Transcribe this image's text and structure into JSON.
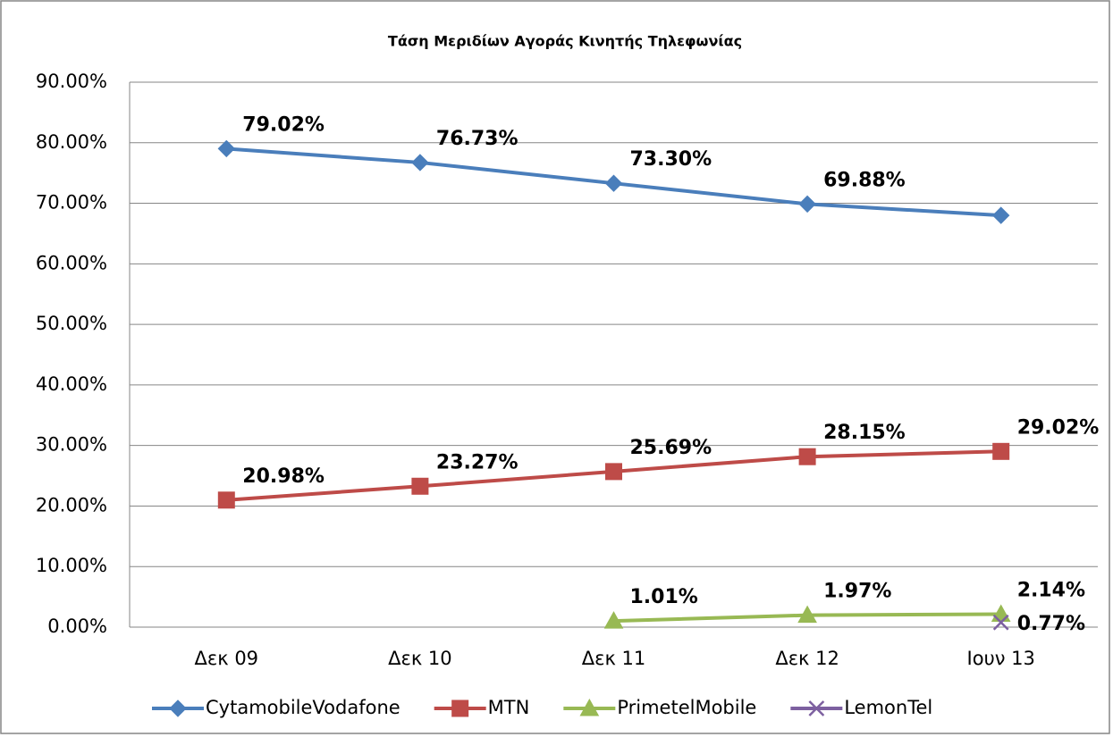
{
  "chart_data": {
    "type": "line",
    "title": "Τάση Μεριδίων  Αγοράς Κινητής Τηλεφωνίας",
    "categories": [
      "Δεκ 09",
      "Δεκ 10",
      "Δεκ 11",
      "Δεκ 12",
      "Ιουν 13"
    ],
    "series": [
      {
        "name": "CytamobileVodafone",
        "color": "#4a7ebb",
        "marker": "diamond",
        "values": [
          79.02,
          76.73,
          73.3,
          69.88,
          68.0
        ],
        "value_labels": [
          "79.02%",
          "76.73%",
          "73.30%",
          "69.88%",
          null
        ]
      },
      {
        "name": "MTN",
        "color": "#be4b48",
        "marker": "square",
        "values": [
          20.98,
          23.27,
          25.69,
          28.15,
          29.02
        ],
        "value_labels": [
          "20.98%",
          "23.27%",
          "25.69%",
          "28.15%",
          "29.02%"
        ]
      },
      {
        "name": "PrimetelMobile",
        "color": "#98b954",
        "marker": "triangle",
        "values": [
          null,
          null,
          1.01,
          1.97,
          2.14
        ],
        "value_labels": [
          null,
          null,
          "1.01%",
          "1.97%",
          "2.14%"
        ]
      },
      {
        "name": "LemonTel",
        "color": "#7d60a0",
        "marker": "x",
        "values": [
          null,
          null,
          null,
          null,
          0.77
        ],
        "value_labels": [
          null,
          null,
          null,
          null,
          "0.77%"
        ]
      }
    ],
    "ylim": [
      0,
      90
    ],
    "yticks": [
      {
        "value": 0,
        "label": "0.00%"
      },
      {
        "value": 10,
        "label": "10.00%"
      },
      {
        "value": 20,
        "label": "20.00%"
      },
      {
        "value": 30,
        "label": "30.00%"
      },
      {
        "value": 40,
        "label": "40.00%"
      },
      {
        "value": 50,
        "label": "50.00%"
      },
      {
        "value": 60,
        "label": "60.00%"
      },
      {
        "value": 70,
        "label": "70.00%"
      },
      {
        "value": 80,
        "label": "80.00%"
      },
      {
        "value": 90,
        "label": "90.00%"
      }
    ],
    "grid": true,
    "legend": "bottom"
  }
}
